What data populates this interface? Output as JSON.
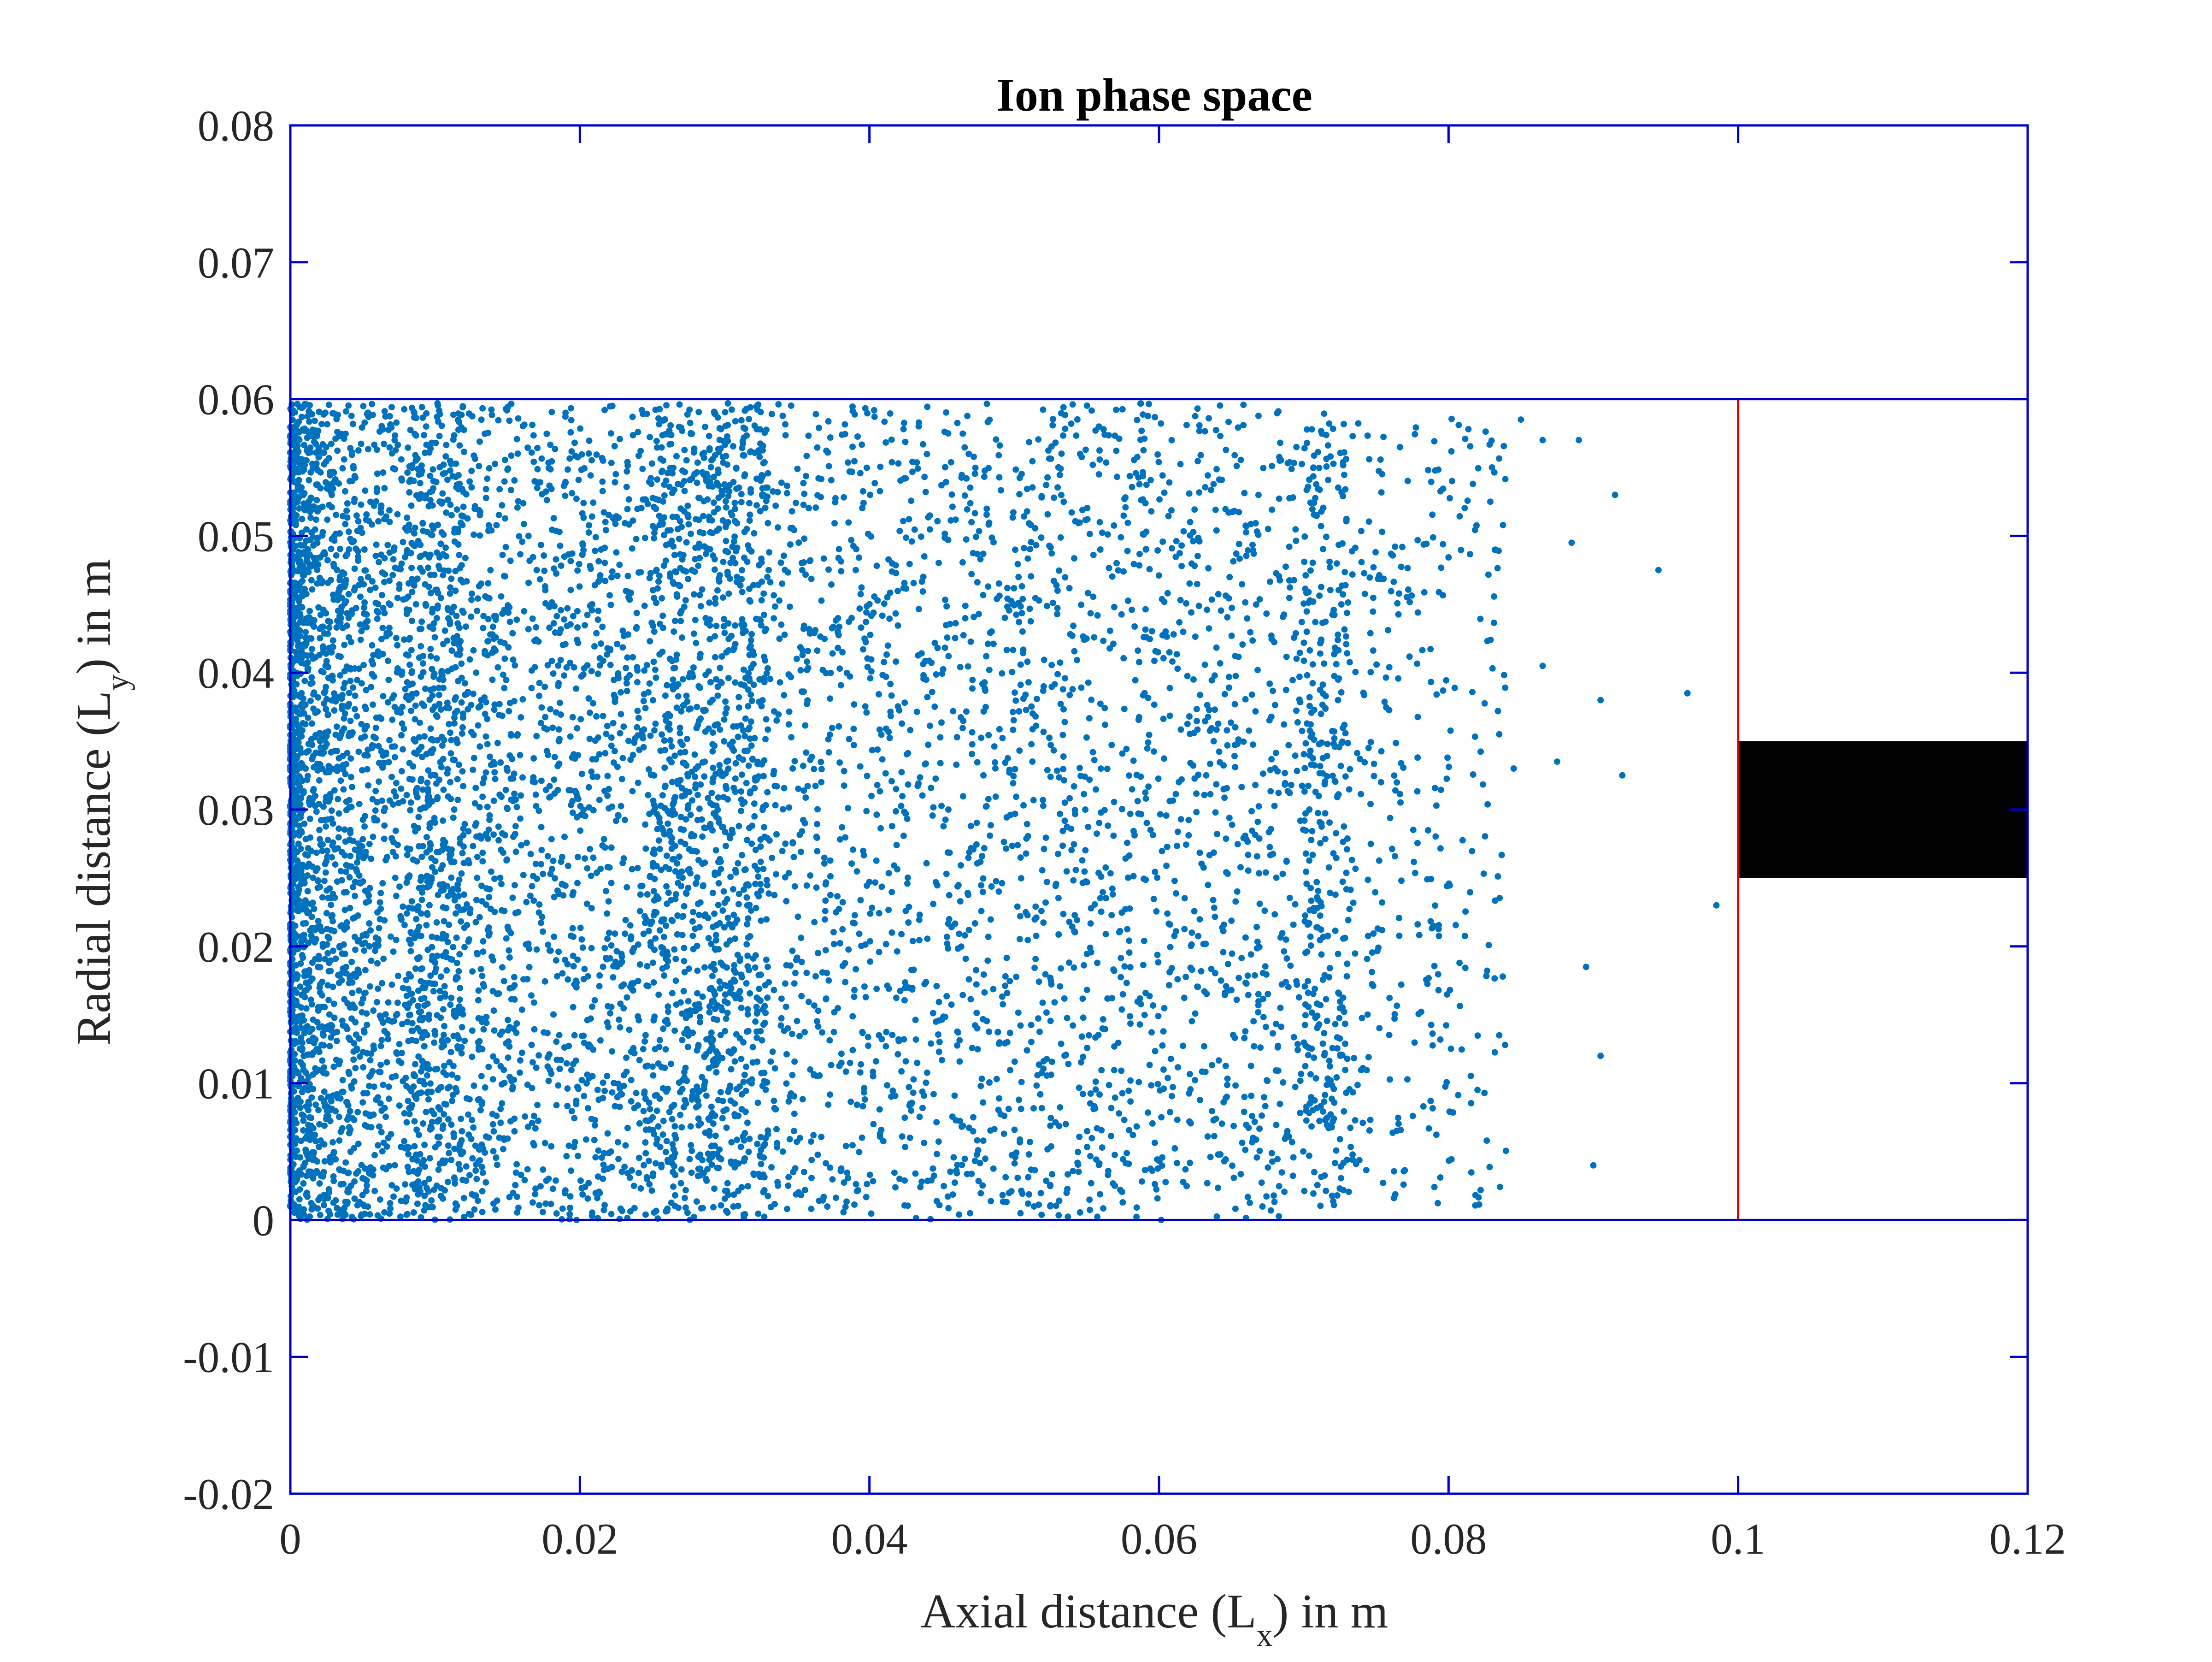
{
  "chart_data": {
    "type": "scatter",
    "title": "Ion phase space",
    "xlabel": {
      "text": "Axial distance (L",
      "subscript": "x",
      "suffix": ") in m"
    },
    "ylabel": {
      "text": "Radial distance (L",
      "subscript": "y",
      "suffix": ") in m"
    },
    "xlim": [
      0,
      0.12
    ],
    "ylim": [
      -0.02,
      0.08
    ],
    "xticks": [
      0,
      0.02,
      0.04,
      0.06,
      0.08,
      0.1,
      0.12
    ],
    "xtick_labels": [
      "0",
      "0.02",
      "0.04",
      "0.06",
      "0.08",
      "0.1",
      "0.12"
    ],
    "yticks": [
      -0.02,
      -0.01,
      0,
      0.01,
      0.02,
      0.03,
      0.04,
      0.05,
      0.06,
      0.07,
      0.08
    ],
    "ytick_labels": [
      "-0.02",
      "-0.01",
      "0",
      "0.01",
      "0.02",
      "0.03",
      "0.04",
      "0.05",
      "0.06",
      "0.07",
      "0.08"
    ],
    "grid": false,
    "legend": "none",
    "colors": {
      "points": "#0072BD",
      "axes_frame": "#0000CC",
      "domain_lines": "#0000CC",
      "target_box": "#E00000",
      "target_block": "#000000"
    },
    "domain_lines_y": [
      0,
      0.06
    ],
    "target_box": {
      "x": [
        0.1,
        0.12
      ],
      "y": [
        0,
        0.06
      ]
    },
    "target_block": {
      "x": [
        0.1,
        0.12
      ],
      "y": [
        0.025,
        0.035
      ]
    },
    "series": [
      {
        "name": "ions",
        "sampled": true,
        "approx_count": 9000,
        "density_profile": "dense near x=0, roughly uniform to x≈0.075, thinning out to x≈0.10",
        "outliers": [
          [
            0.0985,
            0.023
          ],
          [
            0.0965,
            0.0385
          ],
          [
            0.0945,
            0.0475
          ],
          [
            0.092,
            0.0325
          ],
          [
            0.0915,
            0.053
          ],
          [
            0.0905,
            0.038
          ],
          [
            0.0905,
            0.012
          ],
          [
            0.09,
            0.004
          ],
          [
            0.089,
            0.057
          ],
          [
            0.0895,
            0.0185
          ],
          [
            0.0885,
            0.0495
          ],
          [
            0.0875,
            0.0335
          ],
          [
            0.0865,
            0.0405
          ],
          [
            0.0865,
            0.057
          ],
          [
            0.085,
            0.0585
          ],
          [
            0.0845,
            0.033
          ],
          [
            0.0835,
            0.0355
          ],
          [
            0.0835,
            0.0135
          ],
          [
            0.083,
            0.055
          ]
        ]
      }
    ]
  }
}
